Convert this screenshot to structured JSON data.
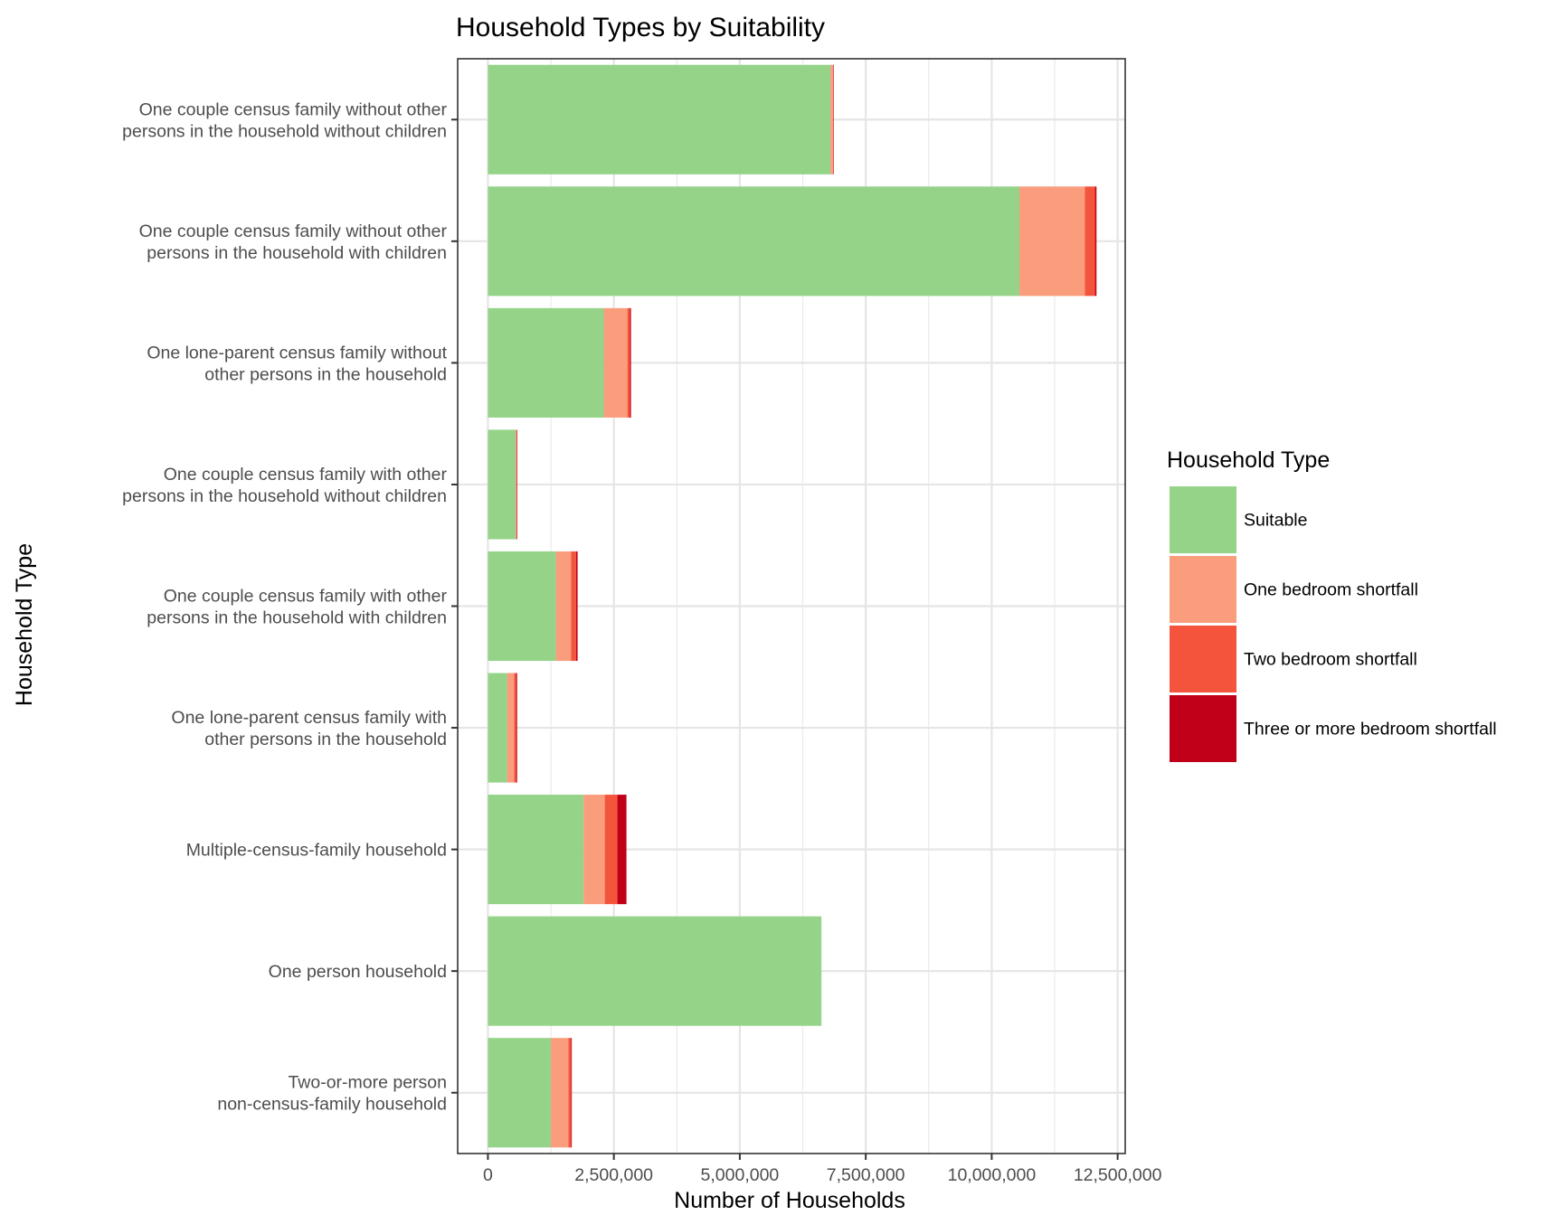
{
  "chart_data": {
    "type": "bar",
    "orientation": "horizontal",
    "stacked": true,
    "title": "Household Types by Suitability",
    "xlabel": "Number of Households",
    "ylabel": "Household Type",
    "xlim": [
      -600000,
      12650000
    ],
    "xticks": [
      0,
      2500000,
      5000000,
      7500000,
      10000000,
      12500000
    ],
    "xtick_labels": [
      "0",
      "2,500,000",
      "5,000,000",
      "7,500,000",
      "10,000,000",
      "12,500,000"
    ],
    "grid": true,
    "legend_position": "right",
    "legend_title": "Household Type",
    "categories": [
      [
        "One couple census family without other",
        "persons in the household without children"
      ],
      [
        "One couple census family without other",
        "persons in the household with children"
      ],
      [
        "One lone-parent census family without",
        "other persons in the household"
      ],
      [
        "One couple census family with other",
        "persons in the household without children"
      ],
      [
        "One couple census family with other",
        "persons in the household with children"
      ],
      [
        "One lone-parent census family with",
        "other persons in the household"
      ],
      [
        "Multiple-census-family household"
      ],
      [
        "One person household"
      ],
      [
        "Two-or-more person",
        "non-census-family household"
      ]
    ],
    "series": [
      {
        "name": "Suitable",
        "color": "#94d388",
        "values": [
          6800000,
          10550000,
          2300000,
          550000,
          1350000,
          380000,
          1900000,
          6620000,
          1250000
        ]
      },
      {
        "name": "One bedroom shortfall",
        "color": "#f99d7c",
        "values": [
          50000,
          1300000,
          470000,
          20000,
          300000,
          140000,
          420000,
          0,
          350000
        ]
      },
      {
        "name": "Two bedroom shortfall",
        "color": "#f5543c",
        "values": [
          5000,
          200000,
          50000,
          5000,
          100000,
          40000,
          250000,
          0,
          50000
        ]
      },
      {
        "name": "Three or more bedroom shortfall",
        "color": "#c00018",
        "values": [
          2000,
          30000,
          20000,
          2000,
          30000,
          20000,
          180000,
          0,
          15000
        ]
      }
    ]
  }
}
